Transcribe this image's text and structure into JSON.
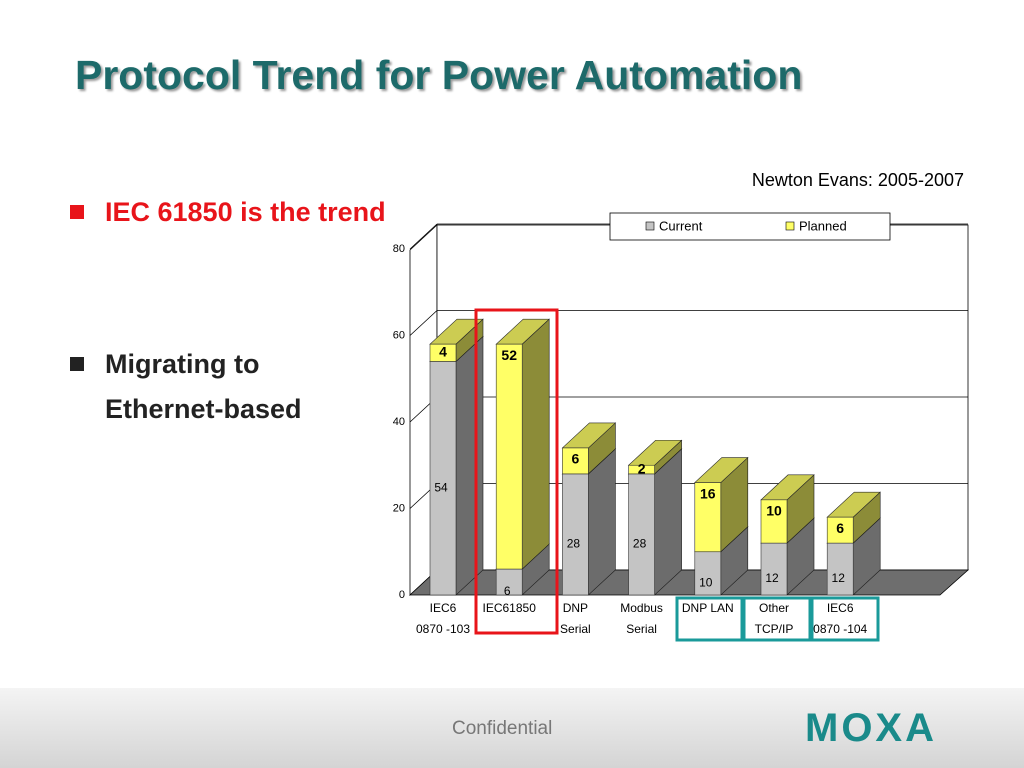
{
  "slide": {
    "title": "Protocol Trend for Power Automation",
    "bullets": [
      "IEC 61850 is the trend",
      "Migrating to Ethernet-based"
    ],
    "footer": "Confidential",
    "logo": "MOXA"
  },
  "chart_data": {
    "type": "bar",
    "stacked": true,
    "title": "Newton Evans: 2005-2007",
    "categories": [
      "IEC6\n0870 -103",
      "IEC61850",
      "DNP\nSerial",
      "Modbus\nSerial",
      "DNP LAN",
      "Other\nTCP/IP",
      "IEC6\n0870 -104"
    ],
    "series": [
      {
        "name": "Current",
        "color": "#c4c4c4",
        "values": [
          54,
          6,
          28,
          28,
          10,
          12,
          12
        ]
      },
      {
        "name": "Planned",
        "color": "#ffff66",
        "values": [
          4,
          52,
          6,
          2,
          16,
          10,
          6
        ]
      }
    ],
    "ylim": [
      0,
      80
    ],
    "yticks": [
      0,
      20,
      40,
      60,
      80
    ],
    "grid": true,
    "legend": "top"
  }
}
